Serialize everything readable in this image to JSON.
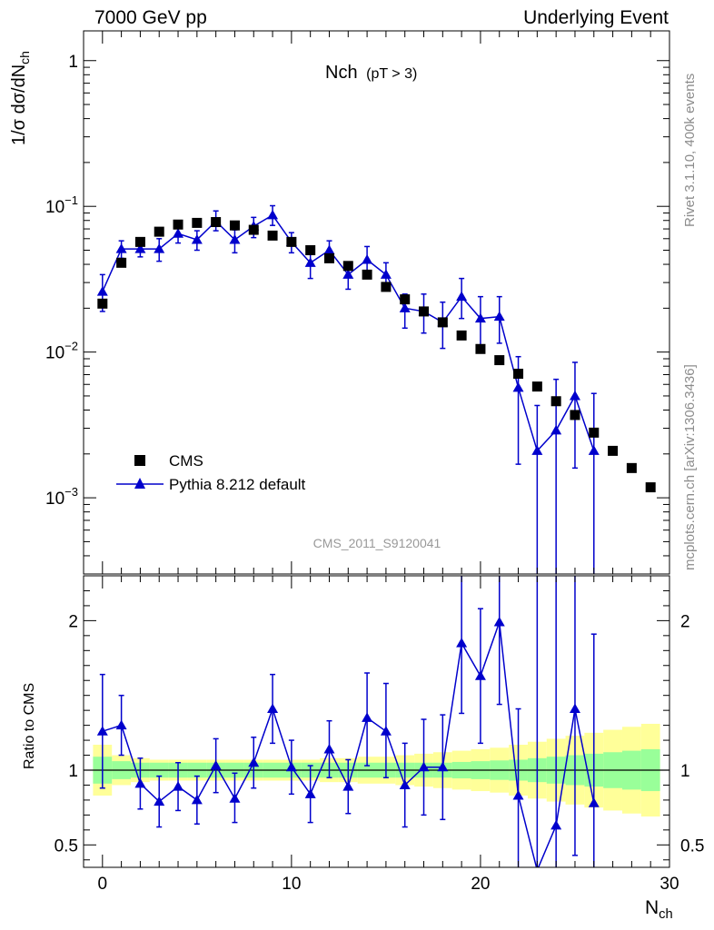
{
  "header": {
    "left": "7000 GeV pp",
    "right": "Underlying Event"
  },
  "side_labels": {
    "rivet": "Rivet 3.1.10,  400k events",
    "mcplots": "mcplots.cern.ch [arXiv:1306.3436]"
  },
  "colors": {
    "data": "#000000",
    "mc": "#0000cc",
    "band_inner": "#99ff99",
    "band_outer": "#ffff99",
    "watermark": "#999999"
  },
  "chart_data": [
    {
      "type": "scatter",
      "title": "Nch",
      "title_cut": "(pT >  3)",
      "ylabel": "1/σ dσ/dN",
      "ylabel_sub": "ch",
      "yscale": "log",
      "ylim": [
        0.0003,
        1.6
      ],
      "xlim": [
        -1,
        30
      ],
      "yticks": [
        {
          "value": 1,
          "label": "1"
        },
        {
          "value": 0.1,
          "base": "10",
          "exp": "−1"
        },
        {
          "value": 0.01,
          "base": "10",
          "exp": "−2"
        },
        {
          "value": 0.001,
          "base": "10",
          "exp": "−3"
        }
      ],
      "watermark": "CMS_2011_S9120041",
      "legend_position": "bottom-left",
      "series": [
        {
          "name": "CMS",
          "marker": "square",
          "x": [
            0,
            1,
            2,
            3,
            4,
            5,
            6,
            7,
            8,
            9,
            10,
            11,
            12,
            13,
            14,
            15,
            16,
            17,
            18,
            19,
            20,
            21,
            22,
            23,
            24,
            25,
            26,
            27,
            28,
            29
          ],
          "y": [
            0.0215,
            0.041,
            0.057,
            0.067,
            0.075,
            0.077,
            0.078,
            0.074,
            0.069,
            0.063,
            0.057,
            0.05,
            0.044,
            0.039,
            0.034,
            0.028,
            0.023,
            0.019,
            0.016,
            0.013,
            0.0105,
            0.0088,
            0.0071,
            0.0058,
            0.0046,
            0.0037,
            0.0028,
            0.0021,
            0.0016,
            0.00118
          ]
        },
        {
          "name": "Pythia 8.212 default",
          "marker": "triangle",
          "x": [
            0,
            1,
            2,
            3,
            4,
            5,
            6,
            7,
            8,
            9,
            10,
            11,
            12,
            13,
            14,
            15,
            16,
            17,
            18,
            19,
            20,
            21,
            22,
            23,
            24,
            25,
            26
          ],
          "y": [
            0.026,
            0.051,
            0.051,
            0.051,
            0.065,
            0.059,
            0.079,
            0.059,
            0.073,
            0.087,
            0.057,
            0.041,
            0.05,
            0.034,
            0.043,
            0.034,
            0.02,
            0.019,
            0.016,
            0.024,
            0.017,
            0.0175,
            0.0057,
            0.0021,
            0.0029,
            0.005,
            0.0021
          ],
          "ylow": [
            0.019,
            0.044,
            0.045,
            0.042,
            0.056,
            0.05,
            0.068,
            0.048,
            0.061,
            0.074,
            0.048,
            0.032,
            0.042,
            0.027,
            0.035,
            0.027,
            0.0146,
            0.0135,
            0.0106,
            0.017,
            0.011,
            0.0115,
            0.0017,
            0.0002,
            0.0002,
            0.0016,
            0.0002
          ],
          "yhigh": [
            0.034,
            0.058,
            0.058,
            0.06,
            0.074,
            0.068,
            0.093,
            0.069,
            0.084,
            0.101,
            0.066,
            0.051,
            0.058,
            0.041,
            0.053,
            0.041,
            0.025,
            0.025,
            0.022,
            0.032,
            0.024,
            0.024,
            0.0093,
            0.0043,
            0.0065,
            0.0085,
            0.0052
          ]
        }
      ]
    },
    {
      "type": "scatter",
      "ylabel": "Ratio to CMS",
      "xlabel": "N",
      "xlabel_sub": "ch",
      "xlim": [
        -1,
        30
      ],
      "ylim": [
        0.35,
        2.3
      ],
      "xticks": [
        0,
        10,
        20,
        30
      ],
      "yticks": [
        0.5,
        1,
        2
      ],
      "reference_line": 1,
      "band_inner": {
        "x": [
          -0.5,
          0.5,
          1.5,
          2.5,
          3.5,
          4.5,
          5.5,
          6.5,
          7.5,
          8.5,
          9.5,
          10.5,
          11.5,
          12.5,
          13.5,
          14.5,
          15.5,
          16.5,
          17.5,
          18.5,
          19.5,
          20.5,
          21.5,
          22.5,
          23.5,
          24.5,
          25.5,
          26.5,
          27.5,
          28.5,
          29.5
        ],
        "halfwidth": [
          0.09,
          0.06,
          0.05,
          0.05,
          0.05,
          0.05,
          0.05,
          0.05,
          0.05,
          0.05,
          0.05,
          0.05,
          0.05,
          0.05,
          0.05,
          0.05,
          0.05,
          0.05,
          0.05,
          0.055,
          0.06,
          0.065,
          0.07,
          0.08,
          0.09,
          0.1,
          0.11,
          0.12,
          0.13,
          0.14
        ]
      },
      "band_outer": {
        "halfwidth": [
          0.17,
          0.1,
          0.08,
          0.07,
          0.07,
          0.07,
          0.07,
          0.07,
          0.07,
          0.07,
          0.07,
          0.07,
          0.08,
          0.08,
          0.09,
          0.09,
          0.1,
          0.11,
          0.12,
          0.13,
          0.14,
          0.15,
          0.17,
          0.19,
          0.21,
          0.23,
          0.25,
          0.27,
          0.29,
          0.31
        ]
      },
      "series": [
        {
          "name": "Pythia 8.212 default",
          "x": [
            0,
            1,
            2,
            3,
            4,
            5,
            6,
            7,
            8,
            9,
            10,
            11,
            12,
            13,
            14,
            15,
            16,
            17,
            18,
            19,
            20,
            21,
            22,
            23,
            24,
            25,
            26
          ],
          "y": [
            1.26,
            1.3,
            0.91,
            0.79,
            0.89,
            0.8,
            1.03,
            0.81,
            1.05,
            1.41,
            1.02,
            0.84,
            1.14,
            0.89,
            1.35,
            1.26,
            0.9,
            1.02,
            1.02,
            1.85,
            1.63,
            1.99,
            0.83,
            0.33,
            0.63,
            1.41,
            0.78
          ],
          "ylow": [
            0.88,
            1.1,
            0.74,
            0.62,
            0.73,
            0.64,
            0.85,
            0.65,
            0.88,
            1.18,
            0.84,
            0.65,
            0.95,
            0.71,
            1.03,
            0.95,
            0.62,
            0.7,
            0.67,
            1.38,
            1.18,
            1.44,
            0.25,
            0.3,
            0.3,
            0.43,
            0.3
          ],
          "yhigh": [
            1.64,
            1.5,
            1.08,
            0.96,
            1.05,
            0.96,
            1.21,
            0.98,
            1.22,
            1.64,
            1.2,
            1.03,
            1.33,
            1.07,
            1.65,
            1.58,
            1.18,
            1.34,
            1.37,
            2.32,
            2.08,
            2.54,
            1.41,
            2.4,
            2.4,
            2.32,
            1.91
          ]
        }
      ]
    }
  ]
}
